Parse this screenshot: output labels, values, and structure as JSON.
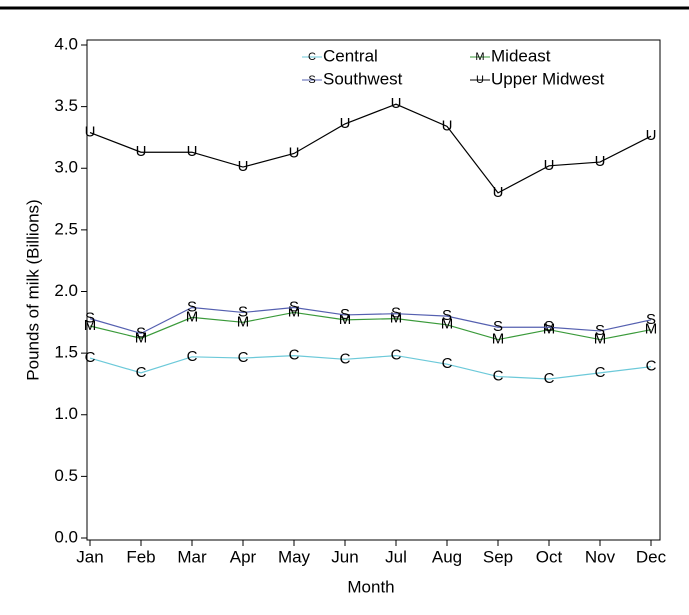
{
  "chart_data": {
    "type": "line",
    "x_label": "Month",
    "y_label": "Pounds of milk (Billions)",
    "categories": [
      "Jan",
      "Feb",
      "Mar",
      "Apr",
      "May",
      "Jun",
      "Jul",
      "Aug",
      "Sep",
      "Oct",
      "Nov",
      "Dec"
    ],
    "series": [
      {
        "name": "Central",
        "color": "#6cc9d9",
        "marker": "C",
        "values": [
          1.46,
          1.34,
          1.47,
          1.46,
          1.48,
          1.45,
          1.48,
          1.41,
          1.31,
          1.29,
          1.34,
          1.39
        ]
      },
      {
        "name": "Mideast",
        "color": "#3a9a3a",
        "marker": "M",
        "values": [
          1.72,
          1.62,
          1.79,
          1.75,
          1.83,
          1.77,
          1.78,
          1.73,
          1.61,
          1.69,
          1.61,
          1.69
        ]
      },
      {
        "name": "Southwest",
        "color": "#5560b0",
        "marker": "S",
        "values": [
          1.78,
          1.66,
          1.87,
          1.83,
          1.87,
          1.81,
          1.82,
          1.8,
          1.71,
          1.71,
          1.68,
          1.77
        ]
      },
      {
        "name": "Upper Midwest",
        "color": "#000000",
        "marker": "U",
        "values": [
          3.29,
          3.13,
          3.13,
          3.01,
          3.12,
          3.36,
          3.52,
          3.34,
          2.8,
          3.02,
          3.05,
          3.26
        ]
      }
    ],
    "ylim": [
      0,
      4
    ],
    "yticks": [
      {
        "value": 0,
        "label": "0.0"
      },
      {
        "value": 0.5,
        "label": "0.5"
      },
      {
        "value": 1,
        "label": "1.0"
      },
      {
        "value": 1.5,
        "label": "1.5"
      },
      {
        "value": 2,
        "label": "2.0"
      },
      {
        "value": 2.5,
        "label": "2.5"
      },
      {
        "value": 3,
        "label": "3.0"
      },
      {
        "value": 3.5,
        "label": "3.5"
      },
      {
        "value": 4,
        "label": "4.0"
      }
    ]
  }
}
